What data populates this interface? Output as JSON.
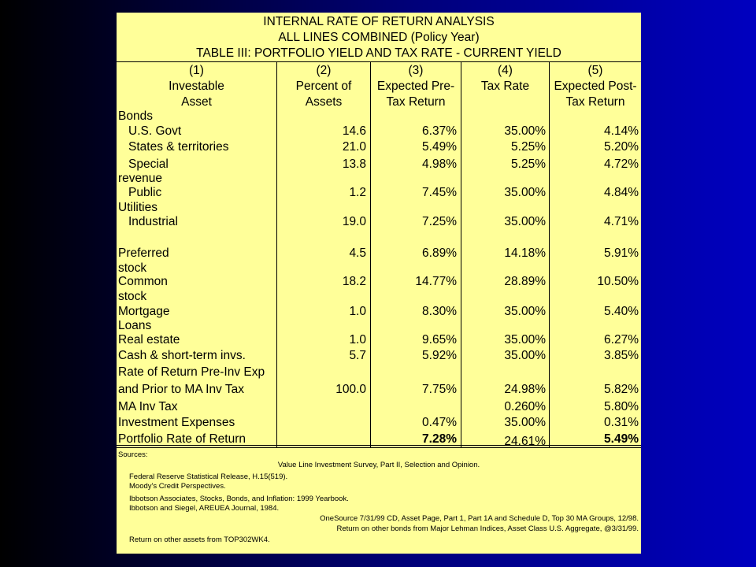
{
  "titles": [
    "INTERNAL RATE OF RETURN ANALYSIS",
    "ALL LINES COMBINED (Policy Year)",
    "TABLE III: PORTFOLIO YIELD AND TAX RATE - CURRENT YIELD"
  ],
  "columns": [
    {
      "num": "(1)",
      "line1": "Investable",
      "line2": "Asset"
    },
    {
      "num": "(2)",
      "line1": "Percent of",
      "line2": "Assets"
    },
    {
      "num": "(3)",
      "line1": "Expected Pre-",
      "line2": "Tax Return"
    },
    {
      "num": "(4)",
      "line1": "Tax Rate",
      "line2": ""
    },
    {
      "num": "(5)",
      "line1": "Expected Post-",
      "line2": "Tax Return"
    }
  ],
  "rows": [
    {
      "label": "Bonds",
      "indent": false,
      "pct": "",
      "pre": "",
      "tax": "",
      "post": "",
      "bold_pre": false,
      "bold_post": false
    },
    {
      "label": "U.S. Govt",
      "indent": true,
      "pct": "14.6",
      "pre": "6.37%",
      "tax": "35.00%",
      "post": "4.14%",
      "bold_pre": false,
      "bold_post": false
    },
    {
      "label": "States & territories",
      "indent": true,
      "pct": "21.0",
      "pre": "5.49%",
      "tax": "5.25%",
      "post": "5.20%",
      "bold_pre": false,
      "bold_post": false
    },
    {
      "label": "Special",
      "indent": true,
      "pct": "13.8",
      "pre": "4.98%",
      "tax": "5.25%",
      "post": "4.72%",
      "bold_pre": false,
      "bold_post": false
    },
    {
      "label": "revenue",
      "indent": false,
      "pct": "",
      "pre": "",
      "tax": "",
      "post": "",
      "bold_pre": false,
      "bold_post": false
    },
    {
      "label": "Public",
      "indent": true,
      "pct": "1.2",
      "pre": "7.45%",
      "tax": "35.00%",
      "post": "4.84%",
      "bold_pre": false,
      "bold_post": false
    },
    {
      "label": "Utilities",
      "indent": false,
      "pct": "",
      "pre": "",
      "tax": "",
      "post": "",
      "bold_pre": false,
      "bold_post": false
    },
    {
      "label": "Industrial",
      "indent": true,
      "pct": "19.0",
      "pre": "7.25%",
      "tax": "35.00%",
      "post": "4.71%",
      "bold_pre": false,
      "bold_post": false
    },
    {
      "label": "",
      "indent": false,
      "pct": "",
      "pre": "",
      "tax": "",
      "post": "",
      "bold_pre": false,
      "bold_post": false
    },
    {
      "label": "Preferred",
      "indent": false,
      "pct": "4.5",
      "pre": "6.89%",
      "tax": "14.18%",
      "post": "5.91%",
      "bold_pre": false,
      "bold_post": false
    },
    {
      "label": "stock",
      "indent": false,
      "pct": "",
      "pre": "",
      "tax": "",
      "post": "",
      "bold_pre": false,
      "bold_post": false
    },
    {
      "label": "Common",
      "indent": false,
      "pct": "18.2",
      "pre": "14.77%",
      "tax": "28.89%",
      "post": "10.50%",
      "bold_pre": false,
      "bold_post": false
    },
    {
      "label": "stock",
      "indent": false,
      "pct": "",
      "pre": "",
      "tax": "",
      "post": "",
      "bold_pre": false,
      "bold_post": false
    },
    {
      "label": "Mortgage",
      "indent": false,
      "pct": "1.0",
      "pre": "8.30%",
      "tax": "35.00%",
      "post": "5.40%",
      "bold_pre": false,
      "bold_post": false
    },
    {
      "label": "Loans",
      "indent": false,
      "pct": "",
      "pre": "",
      "tax": "",
      "post": "",
      "bold_pre": false,
      "bold_post": false
    },
    {
      "label": "Real estate",
      "indent": false,
      "pct": "1.0",
      "pre": "9.65%",
      "tax": "35.00%",
      "post": "6.27%",
      "bold_pre": false,
      "bold_post": false
    },
    {
      "label": "Cash & short-term invs.",
      "indent": false,
      "pct": "5.7",
      "pre": "5.92%",
      "tax": "35.00%",
      "post": "3.85%",
      "bold_pre": false,
      "bold_post": false
    },
    {
      "label": "Rate of Return Pre-Inv Exp",
      "indent": false,
      "pct": "",
      "pre": "",
      "tax": "",
      "post": "",
      "bold_pre": false,
      "bold_post": false
    },
    {
      "label": "and Prior to MA Inv Tax",
      "indent": false,
      "pct": "100.0",
      "pre": "7.75%",
      "tax": "24.98%",
      "post": "5.82%",
      "bold_pre": false,
      "bold_post": false
    },
    {
      "label": "MA Inv Tax",
      "indent": false,
      "pct": "",
      "pre": "",
      "tax": "0.260%",
      "post": "5.80%",
      "bold_pre": false,
      "bold_post": false
    },
    {
      "label": "Investment Expenses",
      "indent": false,
      "pct": "",
      "pre": "0.47%",
      "tax": "35.00%",
      "post": "0.31%",
      "bold_pre": false,
      "bold_post": false
    },
    {
      "label": "Portfolio Rate of Return",
      "indent": false,
      "pct": "",
      "pre": "7.28%",
      "tax": "24.61%",
      "post": "5.49%",
      "bold_pre": true,
      "bold_post": true
    }
  ],
  "sources": [
    {
      "text": "Sources:",
      "align": "left"
    },
    {
      "text": "Value Line Investment Survey, Part II, Selection and Opinion.",
      "align": "center"
    },
    {
      "text": "Federal Reserve Statistical Release, H.15(519).",
      "align": "left"
    },
    {
      "text": "Moody's Credit Perspectives.",
      "align": "left"
    },
    {
      "text": "Ibbotson Associates, Stocks, Bonds, and Inflation: 1999 Yearbook.",
      "align": "left"
    },
    {
      "text": "Ibbotson and Siegel, AREUEA Journal, 1984.",
      "align": "left"
    },
    {
      "text": "OneSource 7/31/99 CD, Asset Page, Part 1, Part 1A and Schedule D, Top 30 MA Groups, 12/98.",
      "align": "right"
    },
    {
      "text": "Return on other bonds from Major Lehman Indices, Asset Class U.S. Aggregate, @3/31/99.",
      "align": "right"
    },
    {
      "text": "Return on other assets from TOP302WK4.",
      "align": "left"
    }
  ]
}
